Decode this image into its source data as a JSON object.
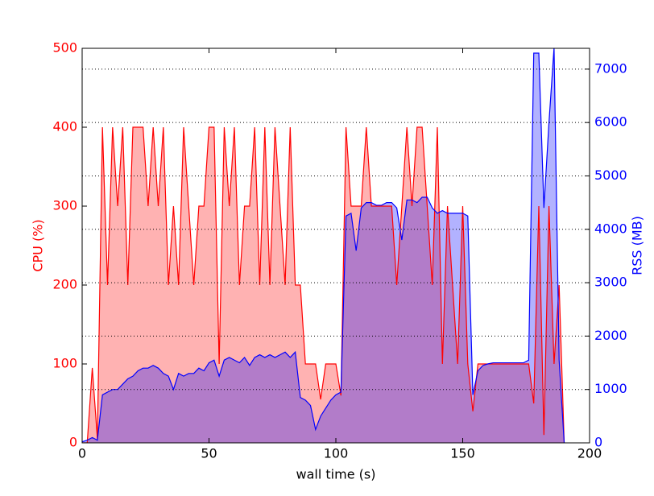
{
  "chart_data": {
    "type": "area",
    "xlabel": "wall time (s)",
    "ylabel": "CPU (%)",
    "y2label": "RSS (MB)",
    "x": [
      0,
      2,
      4,
      6,
      8,
      10,
      12,
      14,
      16,
      18,
      20,
      22,
      24,
      26,
      28,
      30,
      32,
      34,
      36,
      38,
      40,
      42,
      44,
      46,
      48,
      50,
      52,
      54,
      56,
      58,
      60,
      62,
      64,
      66,
      68,
      70,
      72,
      74,
      76,
      78,
      80,
      82,
      84,
      86,
      88,
      90,
      92,
      94,
      96,
      98,
      100,
      102,
      104,
      106,
      108,
      110,
      112,
      114,
      116,
      118,
      120,
      122,
      124,
      126,
      128,
      130,
      132,
      134,
      136,
      138,
      140,
      142,
      144,
      146,
      148,
      150,
      152,
      154,
      156,
      158,
      160,
      162,
      164,
      166,
      168,
      170,
      172,
      174,
      176,
      178,
      180,
      182,
      184,
      186,
      188,
      190
    ],
    "series": [
      {
        "name": "CPU (%)",
        "color": "#ff0000",
        "axis": "y",
        "values": [
          0,
          0,
          95,
          5,
          400,
          200,
          400,
          300,
          400,
          200,
          400,
          400,
          400,
          300,
          400,
          300,
          400,
          200,
          300,
          200,
          400,
          300,
          200,
          300,
          300,
          400,
          400,
          100,
          400,
          300,
          400,
          200,
          300,
          300,
          400,
          200,
          400,
          200,
          400,
          300,
          200,
          400,
          200,
          200,
          100,
          100,
          100,
          55,
          100,
          100,
          100,
          60,
          400,
          300,
          300,
          300,
          400,
          300,
          300,
          300,
          300,
          300,
          200,
          300,
          400,
          300,
          400,
          400,
          300,
          200,
          400,
          100,
          300,
          200,
          100,
          300,
          100,
          40,
          100,
          100,
          100,
          100,
          100,
          100,
          100,
          100,
          100,
          100,
          100,
          50,
          300,
          10,
          300,
          100,
          200,
          0
        ]
      },
      {
        "name": "RSS (MB)",
        "color": "#0000ff",
        "axis": "y2",
        "values": [
          20,
          50,
          100,
          50,
          900,
          950,
          1000,
          1000,
          1100,
          1200,
          1250,
          1350,
          1400,
          1400,
          1450,
          1400,
          1300,
          1250,
          1000,
          1300,
          1250,
          1300,
          1300,
          1400,
          1350,
          1500,
          1550,
          1250,
          1550,
          1600,
          1550,
          1500,
          1600,
          1450,
          1600,
          1650,
          1600,
          1650,
          1600,
          1650,
          1700,
          1600,
          1700,
          850,
          800,
          700,
          250,
          500,
          650,
          800,
          900,
          950,
          4250,
          4300,
          3600,
          4400,
          4500,
          4500,
          4450,
          4450,
          4500,
          4500,
          4400,
          3800,
          4550,
          4550,
          4500,
          4600,
          4600,
          4400,
          4300,
          4350,
          4300,
          4300,
          4300,
          4300,
          4250,
          900,
          1350,
          1450,
          1480,
          1500,
          1500,
          1500,
          1500,
          1500,
          1500,
          1500,
          1550,
          7300,
          7300,
          4400,
          6000,
          7400,
          1550,
          0
        ]
      }
    ],
    "xlim": [
      0,
      200
    ],
    "xticks": [
      0,
      50,
      100,
      150,
      200
    ],
    "ylim": [
      0,
      500
    ],
    "yticks": [
      0,
      100,
      200,
      300,
      400,
      500
    ],
    "y2lim": [
      0,
      7390
    ],
    "y2ticks": [
      0,
      1000,
      2000,
      3000,
      4000,
      5000,
      6000,
      7000
    ],
    "grid_axis": "y2",
    "fill_opacity": 0.3
  }
}
